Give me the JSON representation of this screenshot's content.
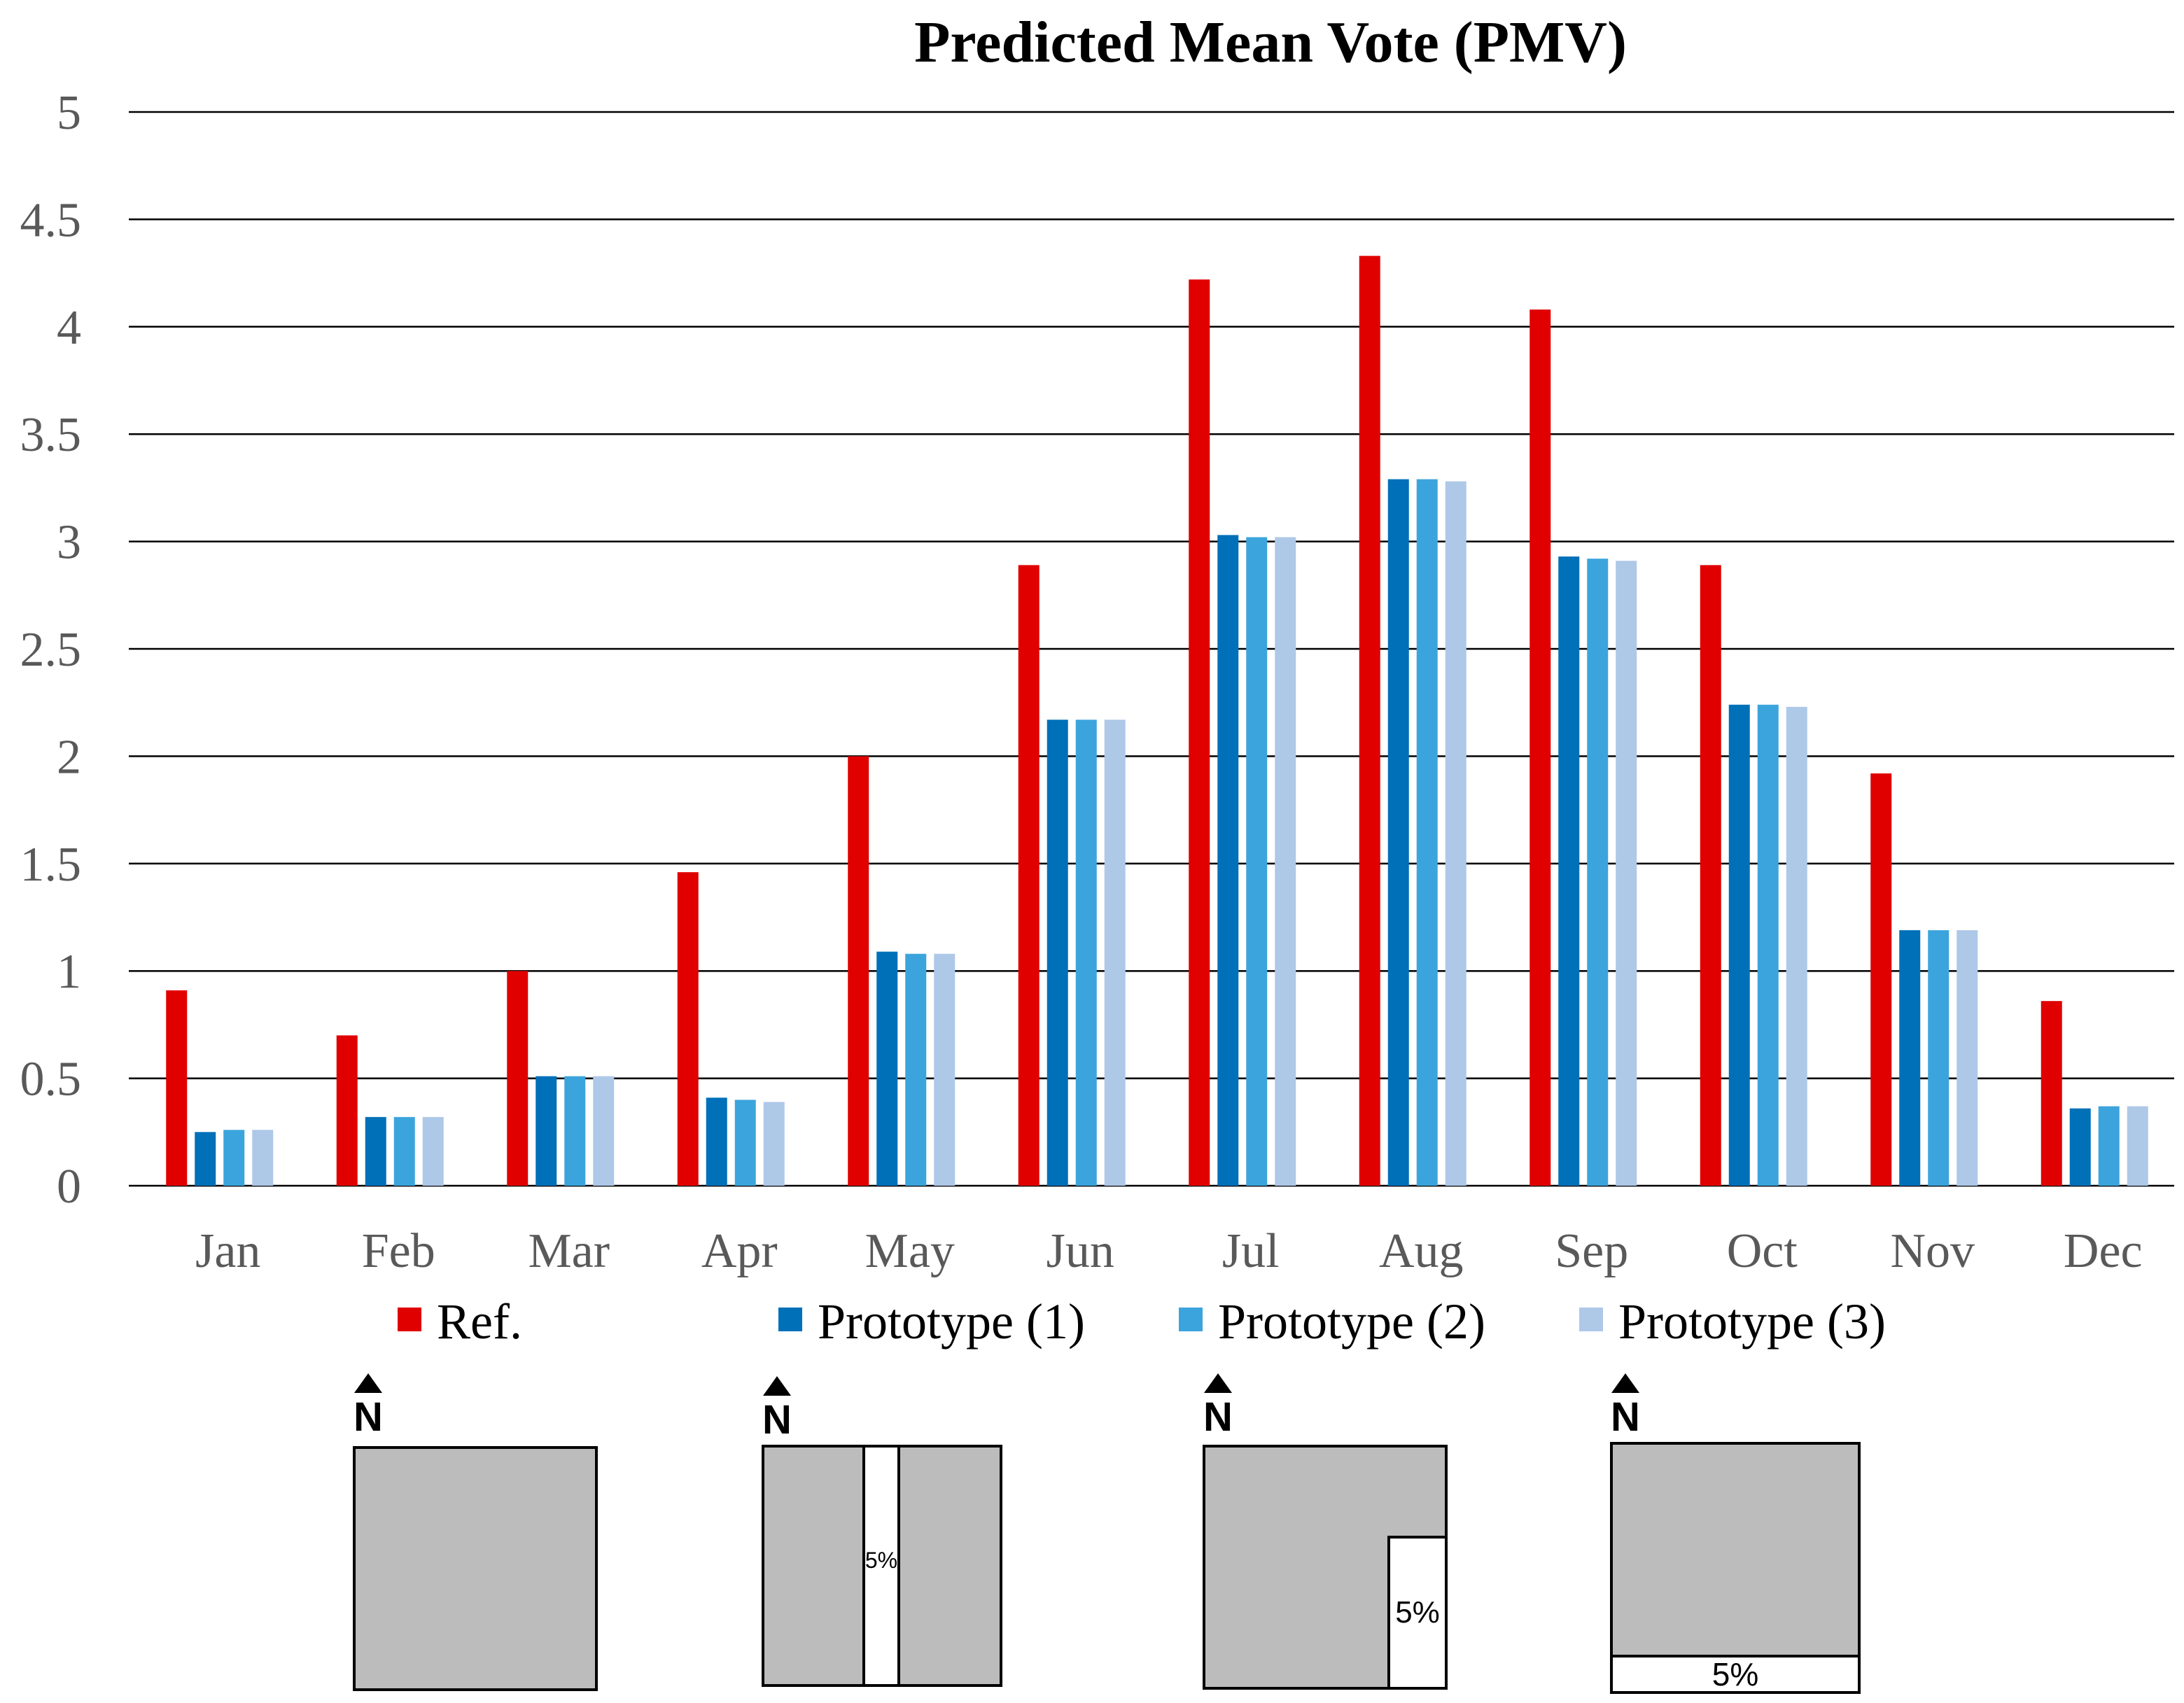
{
  "chart_data": {
    "type": "bar",
    "title": "Predicted Mean Vote (PMV)",
    "xlabel": "",
    "ylabel": "",
    "ylim": [
      0,
      5
    ],
    "yticks": [
      "0",
      "0.5",
      "1",
      "1.5",
      "2",
      "2.5",
      "3",
      "3.5",
      "4",
      "4.5",
      "5"
    ],
    "grid": true,
    "legend_position": "bottom",
    "categories": [
      "Jan",
      "Feb",
      "Mar",
      "Apr",
      "May",
      "Jun",
      "Jul",
      "Aug",
      "Sep",
      "Oct",
      "Nov",
      "Dec"
    ],
    "series": [
      {
        "name": "Ref.",
        "color": "#e00000",
        "values": [
          0.91,
          0.7,
          1.0,
          1.46,
          2.0,
          2.89,
          4.22,
          4.33,
          4.08,
          2.89,
          1.92,
          0.86
        ]
      },
      {
        "name": "Prototype (1)",
        "color": "#0070b8",
        "values": [
          0.25,
          0.32,
          0.51,
          0.41,
          1.09,
          2.17,
          3.03,
          3.29,
          2.93,
          2.24,
          1.19,
          0.36
        ]
      },
      {
        "name": "Prototype (2)",
        "color": "#3ca4dc",
        "values": [
          0.26,
          0.32,
          0.51,
          0.4,
          1.08,
          2.17,
          3.02,
          3.29,
          2.92,
          2.24,
          1.19,
          0.37
        ]
      },
      {
        "name": "Prototype (3)",
        "color": "#aec8e8",
        "values": [
          0.26,
          0.32,
          0.51,
          0.39,
          1.08,
          2.17,
          3.02,
          3.28,
          2.91,
          2.23,
          1.19,
          0.37
        ]
      }
    ]
  },
  "diagrams": [
    {
      "name": "Ref.",
      "north_label": "N",
      "void_label": ""
    },
    {
      "name": "Prototype (1)",
      "north_label": "N",
      "void_label": "5%"
    },
    {
      "name": "Prototype (2)",
      "north_label": "N",
      "void_label": "5%"
    },
    {
      "name": "Prototype (3)",
      "north_label": "N",
      "void_label": "5%"
    }
  ],
  "colors": {
    "building": "#bcbcbc",
    "outline": "#000000",
    "gridline": "#000000",
    "tick_text": "#595959"
  }
}
